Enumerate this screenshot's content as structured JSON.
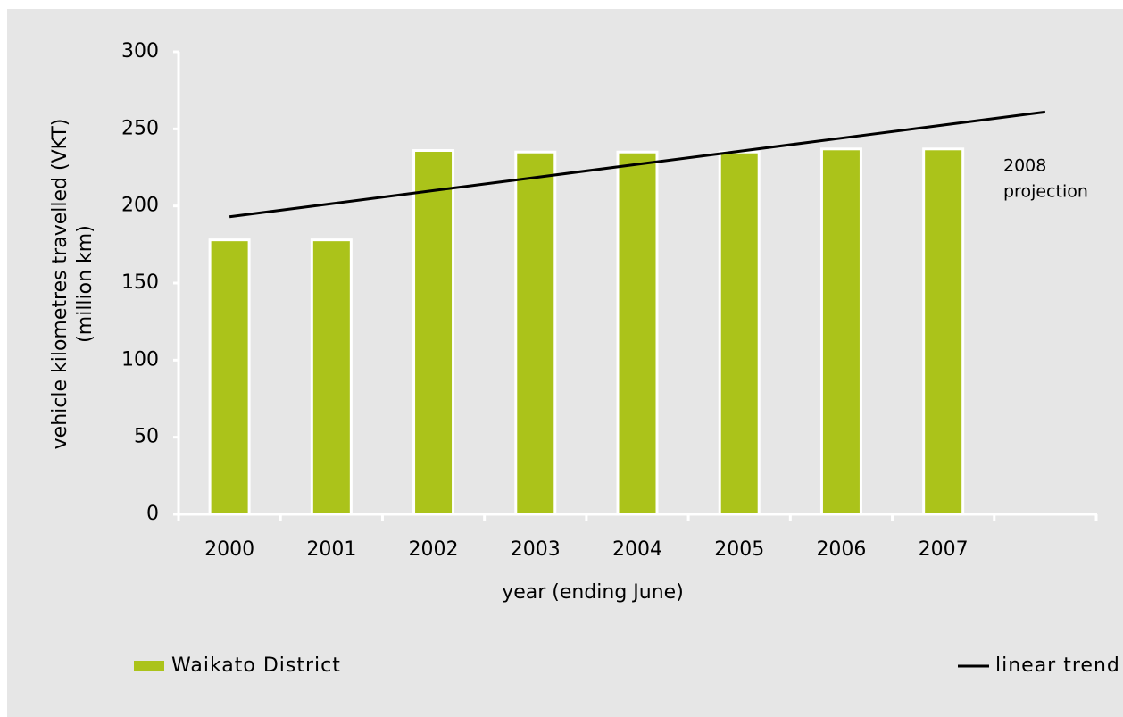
{
  "chart_data": {
    "type": "bar",
    "y_label": [
      "vehicle kilometres travelled (VKT)",
      "(million km)"
    ],
    "x_label": "year (ending June)",
    "categories": [
      "2000",
      "2001",
      "2002",
      "2003",
      "2004",
      "2005",
      "2006",
      "2007",
      null
    ],
    "series": [
      {
        "name": "Waikato District",
        "type": "bar",
        "color": "#abc31a",
        "values": [
          178,
          178,
          236,
          235,
          235,
          235,
          237,
          237,
          null
        ]
      },
      {
        "name": "linear trend with projection",
        "type": "line",
        "color": "#000000",
        "values": [
          193,
          201.5,
          210,
          218.5,
          227,
          235.5,
          244,
          252.5,
          261
        ]
      }
    ],
    "annotation": [
      "2008",
      "projection"
    ],
    "ylim": [
      0,
      300
    ],
    "yticks": [
      0,
      50,
      100,
      150,
      200,
      250,
      300
    ],
    "legend": "bottom"
  }
}
